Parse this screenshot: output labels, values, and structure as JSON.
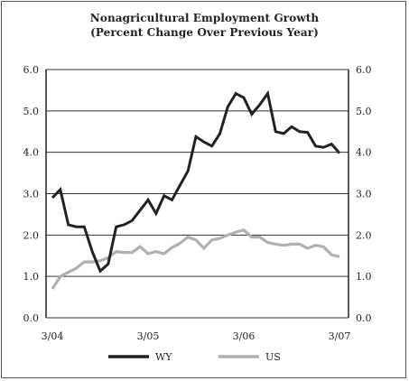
{
  "chart_data": {
    "type": "line",
    "title": "Nonagricultural Employment Growth",
    "subtitle": "(Percent Change Over Previous Year)",
    "x_ticks": [
      "3/04",
      "3/05",
      "3/06",
      "3/07"
    ],
    "y_ticks": [
      "0.0",
      "1.0",
      "2.0",
      "3.0",
      "4.0",
      "5.0",
      "6.0"
    ],
    "ylim": [
      0,
      6
    ],
    "grid": "horizontal",
    "legend_position": "bottom",
    "x_start": "2004-03",
    "series": [
      {
        "name": "WY",
        "color": "#222222",
        "values": [
          2.9,
          3.1,
          2.25,
          2.2,
          2.2,
          1.6,
          1.13,
          1.3,
          2.2,
          2.25,
          2.35,
          2.6,
          2.85,
          2.52,
          2.95,
          2.85,
          3.2,
          3.55,
          4.38,
          4.25,
          4.15,
          4.45,
          5.1,
          5.42,
          5.32,
          4.92,
          5.15,
          5.42,
          4.5,
          4.45,
          4.62,
          4.5,
          4.48,
          4.15,
          4.12,
          4.2,
          3.98
        ]
      },
      {
        "name": "US",
        "color": "#b0b0b0",
        "values": [
          0.7,
          1.0,
          1.1,
          1.2,
          1.35,
          1.35,
          1.38,
          1.45,
          1.6,
          1.58,
          1.58,
          1.72,
          1.55,
          1.6,
          1.55,
          1.7,
          1.8,
          1.95,
          1.88,
          1.68,
          1.88,
          1.92,
          2.0,
          2.07,
          2.12,
          1.95,
          1.95,
          1.82,
          1.78,
          1.75,
          1.78,
          1.78,
          1.68,
          1.75,
          1.72,
          1.52,
          1.48
        ]
      }
    ]
  }
}
